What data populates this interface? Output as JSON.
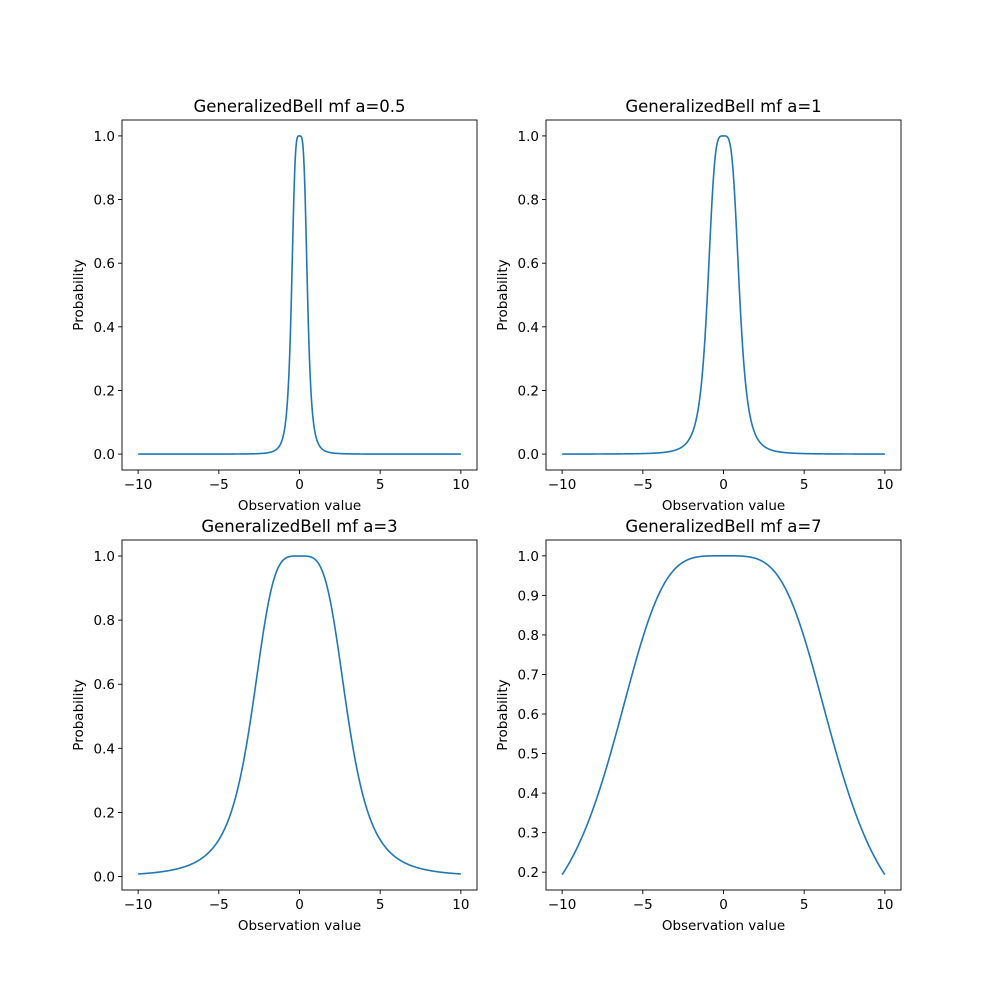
{
  "chart_data": [
    {
      "type": "line",
      "title": "GeneralizedBell mf a=0.5",
      "xlabel": "Observation value",
      "ylabel": "Probability",
      "function": "1/(1+|(x-c)/a|^(2b))",
      "params": {
        "a": 0.5,
        "b": 2,
        "c": 0
      },
      "x_range": [
        -10,
        10
      ],
      "xlim": [
        -11,
        11
      ],
      "ylim": [
        -0.05,
        1.05
      ],
      "xticks": [
        -10,
        -5,
        0,
        5,
        10
      ],
      "xtick_labels": [
        "−10",
        "−5",
        "0",
        "5",
        "10"
      ],
      "yticks": [
        0,
        0.2,
        0.4,
        0.6,
        0.8,
        1.0
      ],
      "ytick_labels": [
        "0.0",
        "0.2",
        "0.4",
        "0.6",
        "0.8",
        "1.0"
      ],
      "color": "#1f77b4",
      "grid": false
    },
    {
      "type": "line",
      "title": "GeneralizedBell mf a=1",
      "xlabel": "Observation value",
      "ylabel": "Probability",
      "function": "1/(1+|(x-c)/a|^(2b))",
      "params": {
        "a": 1,
        "b": 2,
        "c": 0
      },
      "x_range": [
        -10,
        10
      ],
      "xlim": [
        -11,
        11
      ],
      "ylim": [
        -0.05,
        1.05
      ],
      "xticks": [
        -10,
        -5,
        0,
        5,
        10
      ],
      "xtick_labels": [
        "−10",
        "−5",
        "0",
        "5",
        "10"
      ],
      "yticks": [
        0,
        0.2,
        0.4,
        0.6,
        0.8,
        1.0
      ],
      "ytick_labels": [
        "0.0",
        "0.2",
        "0.4",
        "0.6",
        "0.8",
        "1.0"
      ],
      "color": "#1f77b4",
      "grid": false
    },
    {
      "type": "line",
      "title": "GeneralizedBell mf a=3",
      "xlabel": "Observation value",
      "ylabel": "Probability",
      "function": "1/(1+|(x-c)/a|^(2b))",
      "params": {
        "a": 3,
        "b": 2,
        "c": 0
      },
      "x_range": [
        -10,
        10
      ],
      "xlim": [
        -11,
        11
      ],
      "ylim": [
        -0.042,
        1.05
      ],
      "xticks": [
        -10,
        -5,
        0,
        5,
        10
      ],
      "xtick_labels": [
        "−10",
        "−5",
        "0",
        "5",
        "10"
      ],
      "yticks": [
        0,
        0.2,
        0.4,
        0.6,
        0.8,
        1.0
      ],
      "ytick_labels": [
        "0.0",
        "0.2",
        "0.4",
        "0.6",
        "0.8",
        "1.0"
      ],
      "color": "#1f77b4",
      "grid": false
    },
    {
      "type": "line",
      "title": "GeneralizedBell mf a=7",
      "xlabel": "Observation value",
      "ylabel": "Probability",
      "function": "1/(1+|(x-c)/a|^(2b))",
      "params": {
        "a": 7,
        "b": 2,
        "c": 0
      },
      "x_range": [
        -10,
        10
      ],
      "xlim": [
        -11,
        11
      ],
      "ylim": [
        0.155,
        1.04
      ],
      "xticks": [
        -10,
        -5,
        0,
        5,
        10
      ],
      "xtick_labels": [
        "−10",
        "−5",
        "0",
        "5",
        "10"
      ],
      "yticks": [
        0.2,
        0.3,
        0.4,
        0.5,
        0.6,
        0.7,
        0.8,
        0.9,
        1.0
      ],
      "ytick_labels": [
        "0.2",
        "0.3",
        "0.4",
        "0.5",
        "0.6",
        "0.7",
        "0.8",
        "0.9",
        "1.0"
      ],
      "color": "#1f77b4",
      "grid": false
    }
  ]
}
